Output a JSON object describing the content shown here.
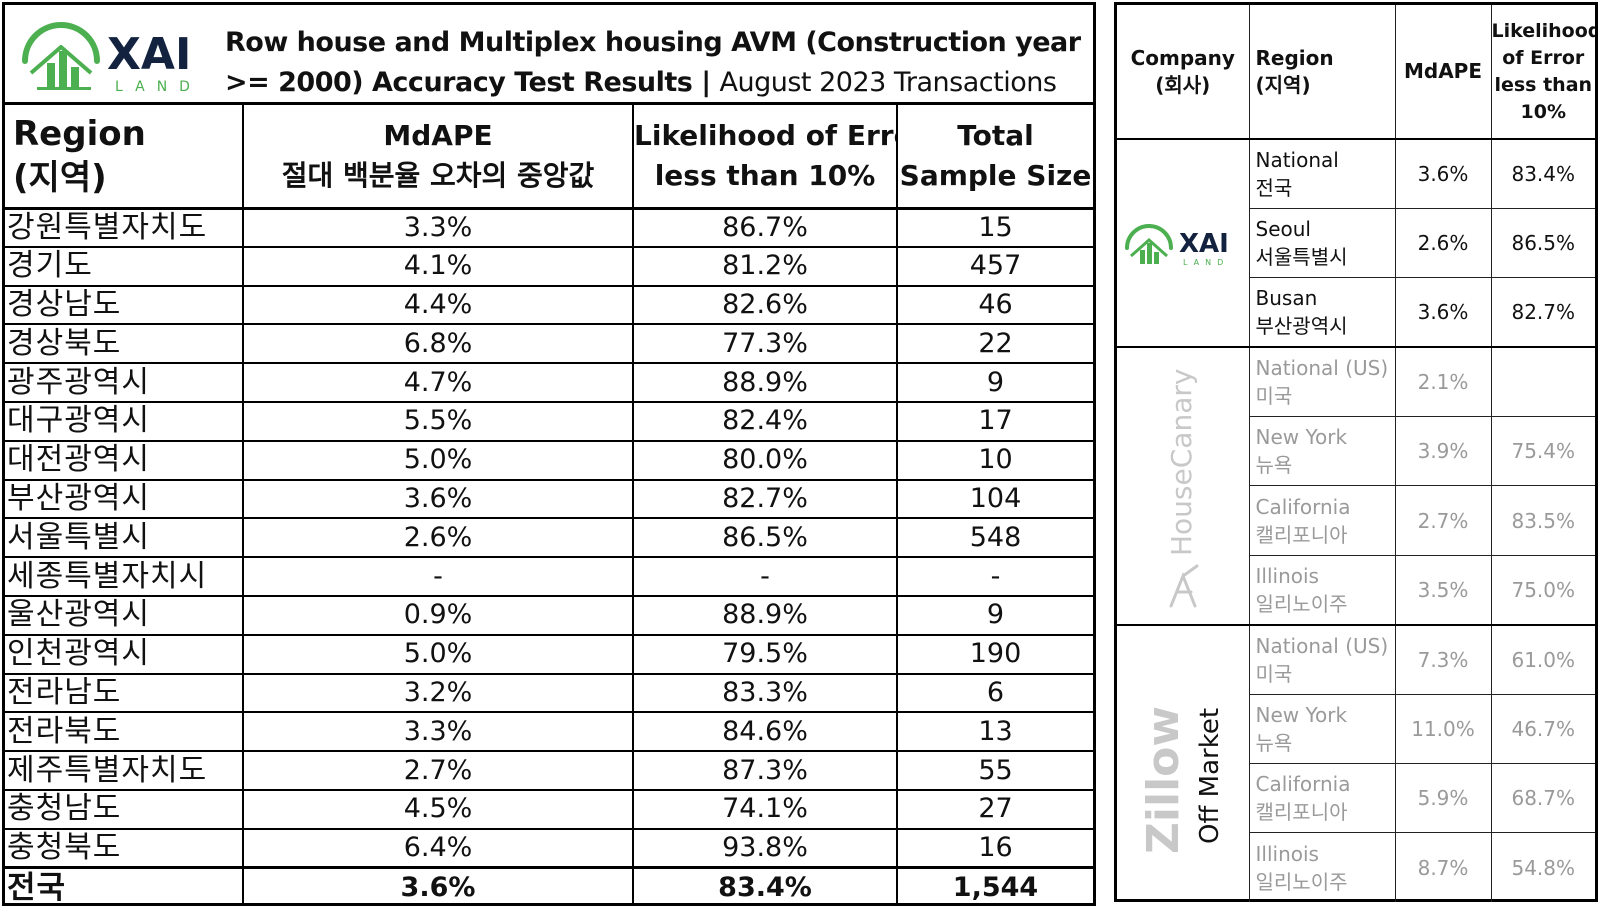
{
  "left_panel": {
    "logo_text": "XAI",
    "logo_subtext": "LAND",
    "title": "Row house and Multiplex housing AVM (Construction year >= 2000) Accuracy Test Results | ",
    "subtitle": "August 2023 Transactions",
    "headers": {
      "region_en": "Region",
      "region_ko": "(지역)",
      "mdape_en": "MdAPE",
      "mdape_ko": "절대 백분율 오차의 중앙값",
      "likelihood_l1": "Likelihood of Error",
      "likelihood_l2": "less than 10%",
      "sample_l1": "Total",
      "sample_l2": "Sample Size"
    },
    "rows": [
      {
        "region": "강원특별자치도",
        "mdape": "3.3%",
        "likelihood": "86.7%",
        "sample": "15"
      },
      {
        "region": "경기도",
        "mdape": "4.1%",
        "likelihood": "81.2%",
        "sample": "457"
      },
      {
        "region": "경상남도",
        "mdape": "4.4%",
        "likelihood": "82.6%",
        "sample": "46"
      },
      {
        "region": "경상북도",
        "mdape": "6.8%",
        "likelihood": "77.3%",
        "sample": "22"
      },
      {
        "region": "광주광역시",
        "mdape": "4.7%",
        "likelihood": "88.9%",
        "sample": "9"
      },
      {
        "region": "대구광역시",
        "mdape": "5.5%",
        "likelihood": "82.4%",
        "sample": "17"
      },
      {
        "region": "대전광역시",
        "mdape": "5.0%",
        "likelihood": "80.0%",
        "sample": "10"
      },
      {
        "region": "부산광역시",
        "mdape": "3.6%",
        "likelihood": "82.7%",
        "sample": "104"
      },
      {
        "region": "서울특별시",
        "mdape": "2.6%",
        "likelihood": "86.5%",
        "sample": "548"
      },
      {
        "region": "세종특별자치시",
        "mdape": "-",
        "likelihood": "-",
        "sample": "-"
      },
      {
        "region": "울산광역시",
        "mdape": "0.9%",
        "likelihood": "88.9%",
        "sample": "9"
      },
      {
        "region": "인천광역시",
        "mdape": "5.0%",
        "likelihood": "79.5%",
        "sample": "190"
      },
      {
        "region": "전라남도",
        "mdape": "3.2%",
        "likelihood": "83.3%",
        "sample": "6"
      },
      {
        "region": "전라북도",
        "mdape": "3.3%",
        "likelihood": "84.6%",
        "sample": "13"
      },
      {
        "region": "제주특별자치도",
        "mdape": "2.7%",
        "likelihood": "87.3%",
        "sample": "55"
      },
      {
        "region": "충청남도",
        "mdape": "4.5%",
        "likelihood": "74.1%",
        "sample": "27"
      },
      {
        "region": "충청북도",
        "mdape": "6.4%",
        "likelihood": "93.8%",
        "sample": "16"
      }
    ],
    "total": {
      "region": "전국",
      "mdape": "3.6%",
      "likelihood": "83.4%",
      "sample": "1,544"
    }
  },
  "right_panel": {
    "headers": {
      "company_en": "Company",
      "company_ko": "(회사)",
      "region_en": "Region",
      "region_ko": "(지역)",
      "mdape": "MdAPE",
      "likelihood_l1": "Likelihood",
      "likelihood_l2": "of Error",
      "likelihood_l3": "less than",
      "likelihood_l4": "10%"
    },
    "companies": [
      {
        "name": "XAI",
        "name_sub": "LAND",
        "rows": [
          {
            "region_en": "National",
            "region_ko": "전국",
            "mdape": "3.6%",
            "likelihood": "83.4%"
          },
          {
            "region_en": "Seoul",
            "region_ko": "서울특별시",
            "mdape": "2.6%",
            "likelihood": "86.5%"
          },
          {
            "region_en": "Busan",
            "region_ko": "부산광역시",
            "mdape": "3.6%",
            "likelihood": "82.7%"
          }
        ]
      },
      {
        "name": "HouseCanary",
        "rows": [
          {
            "region_en": "National (US)",
            "region_ko": "미국",
            "mdape": "2.1%",
            "likelihood": ""
          },
          {
            "region_en": "New York",
            "region_ko": "뉴욕",
            "mdape": "3.9%",
            "likelihood": "75.4%"
          },
          {
            "region_en": "California",
            "region_ko": "캘리포니아",
            "mdape": "2.7%",
            "likelihood": "83.5%"
          },
          {
            "region_en": "Illinois",
            "region_ko": "일리노이주",
            "mdape": "3.5%",
            "likelihood": "75.0%"
          }
        ]
      },
      {
        "name": "Zillow",
        "name_sub": "Off Market",
        "rows": [
          {
            "region_en": "National (US)",
            "region_ko": "미국",
            "mdape": "7.3%",
            "likelihood": "61.0%"
          },
          {
            "region_en": "New York",
            "region_ko": "뉴욕",
            "mdape": "11.0%",
            "likelihood": "46.7%"
          },
          {
            "region_en": "California",
            "region_ko": "캘리포니아",
            "mdape": "5.9%",
            "likelihood": "68.7%"
          },
          {
            "region_en": "Illinois",
            "region_ko": "일리노이주",
            "mdape": "8.7%",
            "likelihood": "54.8%"
          }
        ]
      }
    ]
  },
  "colors": {
    "xai_green": "#4caf50",
    "xai_navy": "#13233f",
    "muted_text": "#9a9a9a",
    "muted_logo": "#c8c8c8"
  }
}
